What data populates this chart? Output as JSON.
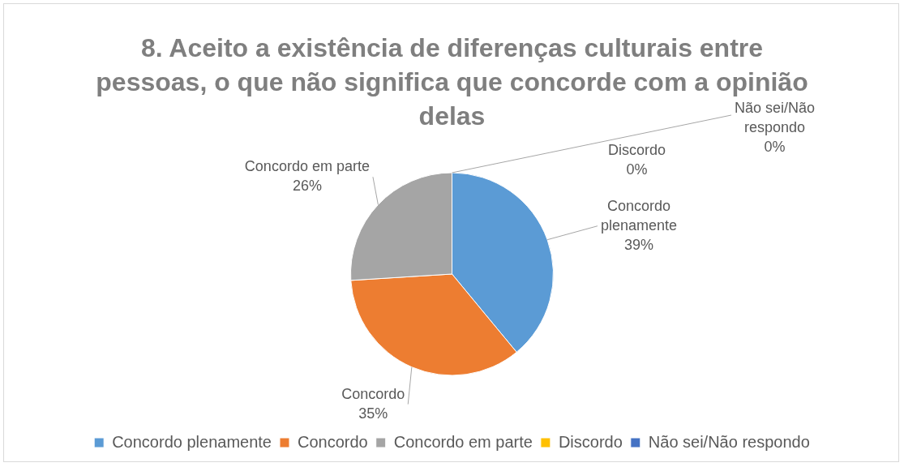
{
  "chart_data": {
    "type": "pie",
    "title": "8. Aceito a existência de diferenças culturais entre pessoas, o que não significa que concorde com a opinião delas",
    "categories": [
      "Concordo plenamente",
      "Concordo",
      "Concordo em parte",
      "Discordo",
      "Não sei/Não respondo"
    ],
    "values": [
      39,
      35,
      26,
      0,
      0
    ],
    "colors": [
      "#5b9bd5",
      "#ed7d31",
      "#a5a5a5",
      "#ffc000",
      "#4472c4"
    ],
    "value_labels": [
      "39%",
      "35%",
      "26%",
      "0%",
      "0%"
    ],
    "legend": "bottom"
  }
}
